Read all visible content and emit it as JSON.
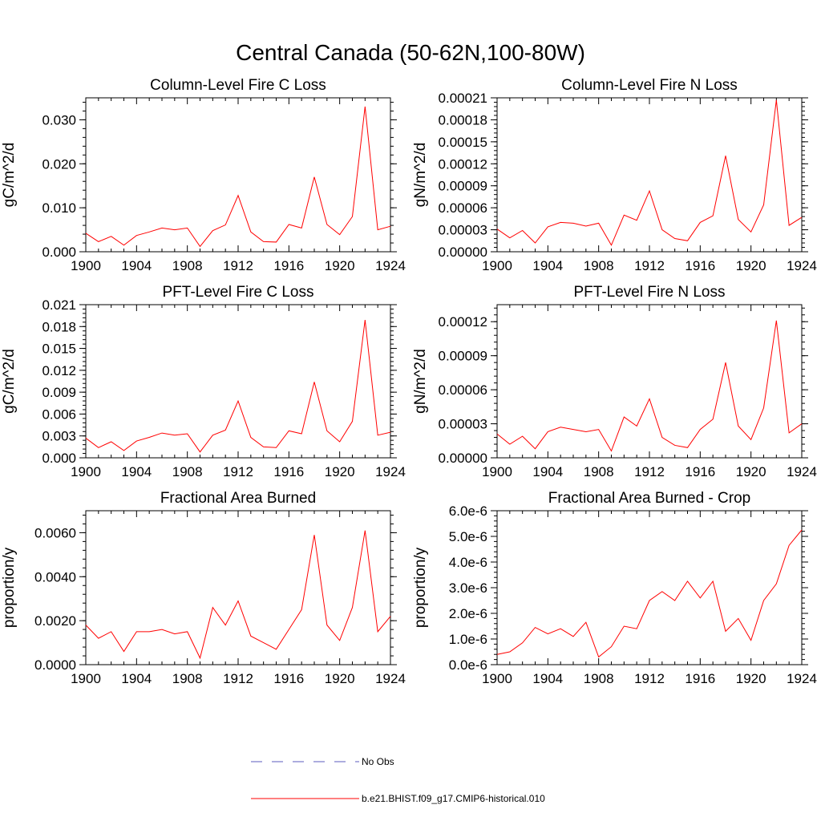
{
  "figure": {
    "title": "Central Canada (50-62N,100-80W)"
  },
  "legend": {
    "entries": [
      {
        "label": "No Obs",
        "color": "#5b5bbf",
        "dash": true
      },
      {
        "label": "b.e21.BHIST.f09_g17.CMIP6-historical.010",
        "color": "#ff0000",
        "dash": false
      }
    ]
  },
  "chart_data": [
    {
      "type": "line",
      "title": "Column-Level Fire C Loss",
      "ylabel": "gC/m^2/d",
      "xlim": [
        1900,
        1924
      ],
      "ylim": [
        0,
        0.035
      ],
      "x_ticks": [
        "1900",
        "1904",
        "1908",
        "1912",
        "1916",
        "1920",
        "1924"
      ],
      "y_ticks": [
        {
          "value": 0.0,
          "label": "0.000"
        },
        {
          "value": 0.01,
          "label": "0.010"
        },
        {
          "value": 0.02,
          "label": "0.020"
        },
        {
          "value": 0.03,
          "label": "0.030"
        }
      ],
      "series": [
        {
          "color": "#ff0000",
          "x": [
            1900,
            1901,
            1902,
            1903,
            1904,
            1905,
            1906,
            1907,
            1908,
            1909,
            1910,
            1911,
            1912,
            1913,
            1914,
            1915,
            1916,
            1917,
            1918,
            1919,
            1920,
            1921,
            1922,
            1923,
            1924
          ],
          "values": [
            0.0042,
            0.0023,
            0.0035,
            0.0015,
            0.0037,
            0.0045,
            0.0054,
            0.005,
            0.0054,
            0.0012,
            0.0048,
            0.0061,
            0.0128,
            0.0045,
            0.0023,
            0.0022,
            0.0062,
            0.0054,
            0.017,
            0.0062,
            0.0039,
            0.008,
            0.033,
            0.005,
            0.0058
          ]
        }
      ]
    },
    {
      "type": "line",
      "title": "Column-Level Fire N Loss",
      "ylabel": "gN/m^2/d",
      "xlim": [
        1900,
        1924
      ],
      "ylim": [
        0,
        0.00021
      ],
      "x_ticks": [
        "1900",
        "1904",
        "1908",
        "1912",
        "1916",
        "1920",
        "1924"
      ],
      "y_ticks": [
        {
          "value": 0.0,
          "label": "0.00000"
        },
        {
          "value": 3e-05,
          "label": "0.00003"
        },
        {
          "value": 6e-05,
          "label": "0.00006"
        },
        {
          "value": 9e-05,
          "label": "0.00009"
        },
        {
          "value": 0.00012,
          "label": "0.00012"
        },
        {
          "value": 0.00015,
          "label": "0.00015"
        },
        {
          "value": 0.00018,
          "label": "0.00018"
        },
        {
          "value": 0.00021,
          "label": "0.00021"
        }
      ],
      "series": [
        {
          "color": "#ff0000",
          "x": [
            1900,
            1901,
            1902,
            1903,
            1904,
            1905,
            1906,
            1907,
            1908,
            1909,
            1910,
            1911,
            1912,
            1913,
            1914,
            1915,
            1916,
            1917,
            1918,
            1919,
            1920,
            1921,
            1922,
            1923,
            1924
          ],
          "values": [
            3.1e-05,
            1.9e-05,
            2.9e-05,
            1.2e-05,
            3.4e-05,
            4e-05,
            3.9e-05,
            3.5e-05,
            3.9e-05,
            9e-06,
            5e-05,
            4.3e-05,
            8.3e-05,
            3e-05,
            1.8e-05,
            1.5e-05,
            4e-05,
            4.9e-05,
            0.000131,
            4.4e-05,
            2.7e-05,
            6.4e-05,
            0.000207,
            3.6e-05,
            4.7e-05
          ]
        }
      ]
    },
    {
      "type": "line",
      "title": "PFT-Level Fire C Loss",
      "ylabel": "gC/m^2/d",
      "xlim": [
        1900,
        1924
      ],
      "ylim": [
        0,
        0.021
      ],
      "x_ticks": [
        "1900",
        "1904",
        "1908",
        "1912",
        "1916",
        "1920",
        "1924"
      ],
      "y_ticks": [
        {
          "value": 0.0,
          "label": "0.000"
        },
        {
          "value": 0.003,
          "label": "0.003"
        },
        {
          "value": 0.006,
          "label": "0.006"
        },
        {
          "value": 0.009,
          "label": "0.009"
        },
        {
          "value": 0.012,
          "label": "0.012"
        },
        {
          "value": 0.015,
          "label": "0.015"
        },
        {
          "value": 0.018,
          "label": "0.018"
        },
        {
          "value": 0.021,
          "label": "0.021"
        }
      ],
      "series": [
        {
          "color": "#ff0000",
          "x": [
            1900,
            1901,
            1902,
            1903,
            1904,
            1905,
            1906,
            1907,
            1908,
            1909,
            1910,
            1911,
            1912,
            1913,
            1914,
            1915,
            1916,
            1917,
            1918,
            1919,
            1920,
            1921,
            1922,
            1923,
            1924
          ],
          "values": [
            0.0027,
            0.0014,
            0.0022,
            0.001,
            0.0023,
            0.0028,
            0.0034,
            0.0031,
            0.0033,
            0.0008,
            0.0031,
            0.0038,
            0.0078,
            0.0028,
            0.0015,
            0.0014,
            0.0037,
            0.0033,
            0.0104,
            0.0037,
            0.0022,
            0.005,
            0.0189,
            0.0031,
            0.0035
          ]
        }
      ]
    },
    {
      "type": "line",
      "title": "PFT-Level Fire N Loss",
      "ylabel": "gN/m^2/d",
      "xlim": [
        1900,
        1924
      ],
      "ylim": [
        0,
        0.000135
      ],
      "x_ticks": [
        "1900",
        "1904",
        "1908",
        "1912",
        "1916",
        "1920",
        "1924"
      ],
      "y_ticks": [
        {
          "value": 0.0,
          "label": "0.00000"
        },
        {
          "value": 3e-05,
          "label": "0.00003"
        },
        {
          "value": 6e-05,
          "label": "0.00006"
        },
        {
          "value": 9e-05,
          "label": "0.00009"
        },
        {
          "value": 0.00012,
          "label": "0.00012"
        }
      ],
      "series": [
        {
          "color": "#ff0000",
          "x": [
            1900,
            1901,
            1902,
            1903,
            1904,
            1905,
            1906,
            1907,
            1908,
            1909,
            1910,
            1911,
            1912,
            1913,
            1914,
            1915,
            1916,
            1917,
            1918,
            1919,
            1920,
            1921,
            1922,
            1923,
            1924
          ],
          "values": [
            2.1e-05,
            1.2e-05,
            1.9e-05,
            8e-06,
            2.3e-05,
            2.7e-05,
            2.5e-05,
            2.3e-05,
            2.5e-05,
            6e-06,
            3.6e-05,
            2.8e-05,
            5.2e-05,
            1.8e-05,
            1.1e-05,
            9e-06,
            2.5e-05,
            3.4e-05,
            8.4e-05,
            2.8e-05,
            1.6e-05,
            4.4e-05,
            0.000121,
            2.2e-05,
            3e-05
          ]
        }
      ]
    },
    {
      "type": "line",
      "title": "Fractional Area Burned",
      "ylabel": "proportion/y",
      "xlim": [
        1900,
        1924
      ],
      "ylim": [
        0,
        0.007
      ],
      "x_ticks": [
        "1900",
        "1904",
        "1908",
        "1912",
        "1916",
        "1920",
        "1924"
      ],
      "y_ticks": [
        {
          "value": 0.0,
          "label": "0.0000"
        },
        {
          "value": 0.002,
          "label": "0.0020"
        },
        {
          "value": 0.004,
          "label": "0.0040"
        },
        {
          "value": 0.006,
          "label": "0.0060"
        }
      ],
      "series": [
        {
          "color": "#ff0000",
          "x": [
            1900,
            1901,
            1902,
            1903,
            1904,
            1905,
            1906,
            1907,
            1908,
            1909,
            1910,
            1911,
            1912,
            1913,
            1914,
            1915,
            1916,
            1917,
            1918,
            1919,
            1920,
            1921,
            1922,
            1923,
            1924
          ],
          "values": [
            0.0018,
            0.0012,
            0.0015,
            0.0006,
            0.0015,
            0.0015,
            0.0016,
            0.0014,
            0.0015,
            0.0003,
            0.0026,
            0.0018,
            0.0029,
            0.0013,
            0.001,
            0.0007,
            0.0016,
            0.0025,
            0.0059,
            0.0018,
            0.0011,
            0.0026,
            0.0061,
            0.0015,
            0.0022
          ]
        }
      ]
    },
    {
      "type": "line",
      "title": "Fractional Area Burned - Crop",
      "ylabel": "proportion/y",
      "xlim": [
        1900,
        1924
      ],
      "ylim": [
        0,
        6e-06
      ],
      "x_ticks": [
        "1900",
        "1904",
        "1908",
        "1912",
        "1916",
        "1920",
        "1924"
      ],
      "y_ticks": [
        {
          "value": 0.0,
          "label": "0.0e-6"
        },
        {
          "value": 1e-06,
          "label": "1.0e-6"
        },
        {
          "value": 2e-06,
          "label": "2.0e-6"
        },
        {
          "value": 3e-06,
          "label": "3.0e-6"
        },
        {
          "value": 4e-06,
          "label": "4.0e-6"
        },
        {
          "value": 5e-06,
          "label": "5.0e-6"
        },
        {
          "value": 6e-06,
          "label": "6.0e-6"
        }
      ],
      "series": [
        {
          "color": "#ff0000",
          "x": [
            1900,
            1901,
            1902,
            1903,
            1904,
            1905,
            1906,
            1907,
            1908,
            1909,
            1910,
            1911,
            1912,
            1913,
            1914,
            1915,
            1916,
            1917,
            1918,
            1919,
            1920,
            1921,
            1922,
            1923,
            1924
          ],
          "values": [
            4e-07,
            5e-07,
            8.5e-07,
            1.45e-06,
            1.2e-06,
            1.4e-06,
            1.1e-06,
            1.65e-06,
            3e-07,
            7e-07,
            1.5e-06,
            1.4e-06,
            2.5e-06,
            2.85e-06,
            2.5e-06,
            3.25e-06,
            2.6e-06,
            3.25e-06,
            1.3e-06,
            1.8e-06,
            9.5e-07,
            2.5e-06,
            3.15e-06,
            4.65e-06,
            5.25e-06
          ]
        }
      ]
    }
  ]
}
